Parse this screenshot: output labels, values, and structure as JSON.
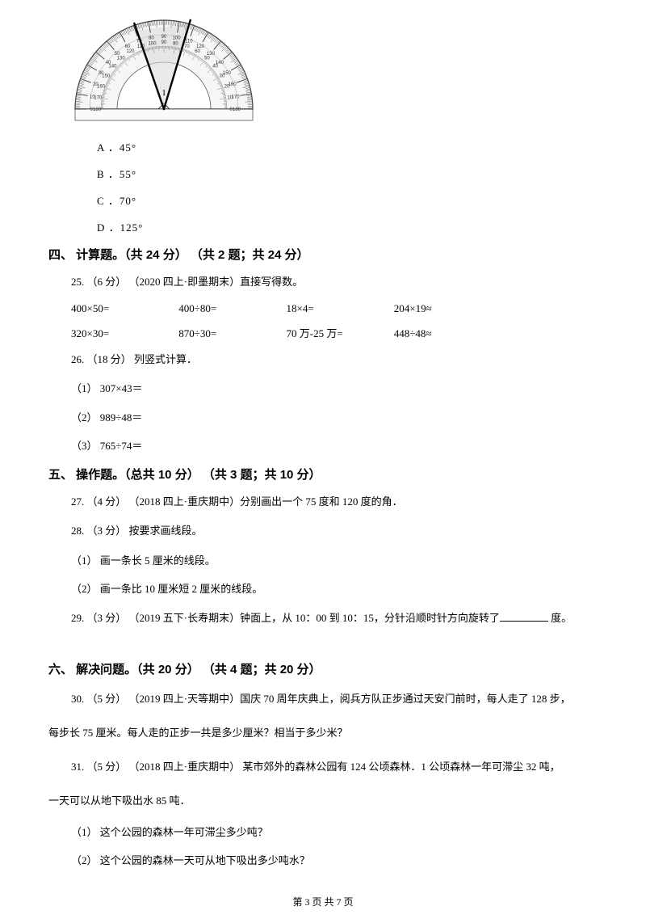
{
  "protractor": {
    "outer_ticks": [
      "0",
      "10",
      "20",
      "30",
      "40",
      "50",
      "60",
      "70",
      "80",
      "90",
      "100",
      "110",
      "120",
      "130",
      "140",
      "150",
      "160",
      "170",
      "180"
    ],
    "inner_ticks": [
      "180",
      "170",
      "160",
      "150",
      "140",
      "130",
      "120",
      "110",
      "100",
      "90",
      "80",
      "70",
      "60",
      "50",
      "40",
      "30",
      "20",
      "10",
      "0"
    ]
  },
  "options": {
    "a": "A ．45°",
    "b": "B ．55°",
    "c": "C ．70°",
    "d": "D ．125°"
  },
  "section4": {
    "header": "四、 计算题。（共 24 分） （共 2 题；共 24 分）",
    "q25": {
      "stem": "25.  （6 分） （2020 四上·即墨期末）直接写得数。",
      "row1": {
        "c1": "400×50=",
        "c2": "400÷80=",
        "c3": "18×4=",
        "c4": "204×19≈"
      },
      "row2": {
        "c1": "320×30=",
        "c2": "870÷30=",
        "c3": "70 万-25 万=",
        "c4": "448÷48≈"
      }
    },
    "q26": {
      "stem": "26.  （18 分） 列竖式计算．",
      "s1": "（1） 307×43＝",
      "s2": "（2） 989÷48＝",
      "s3": "（3） 765÷74＝"
    }
  },
  "section5": {
    "header": "五、 操作题。（总共 10 分） （共 3 题；共 10 分）",
    "q27": "27.  （4 分） （2018 四上·重庆期中）分别画出一个 75 度和 120 度的角．",
    "q28": {
      "stem": "28.  （3 分） 按要求画线段。",
      "s1": "（1） 画一条长 5 厘米的线段。",
      "s2": "（2） 画一条比 10 厘米短 2 厘米的线段。"
    },
    "q29_pre": "29.  （3 分） （2019 五下·长寿期末）钟面上，从 10：00 到 10：15，分针沿顺时针方向旋转了",
    "q29_post": " 度。"
  },
  "section6": {
    "header": "六、 解决问题。（共 20 分） （共 4 题；共 20 分）",
    "q30_a": "30.  （5 分） （2019 四上·天等期中）国庆 70 周年庆典上，阅兵方队正步通过天安门前时，每人走了 128 步，",
    "q30_b": "每步长 75 厘米。每人走的正步一共是多少厘米？相当于多少米？",
    "q31_a": "31.  （5 分） （2018 四上·重庆期中） 某市郊外的森林公园有 124 公顷森林．1 公顷森林一年可滞尘 32 吨，",
    "q31_b": "一天可以从地下吸出水 85 吨．",
    "q31_s1": "（1） 这个公园的森林一年可滞尘多少吨？",
    "q31_s2": "（2） 这个公园的森林一天可从地下吸出多少吨水？"
  },
  "footer": "第 3 页 共 7 页"
}
